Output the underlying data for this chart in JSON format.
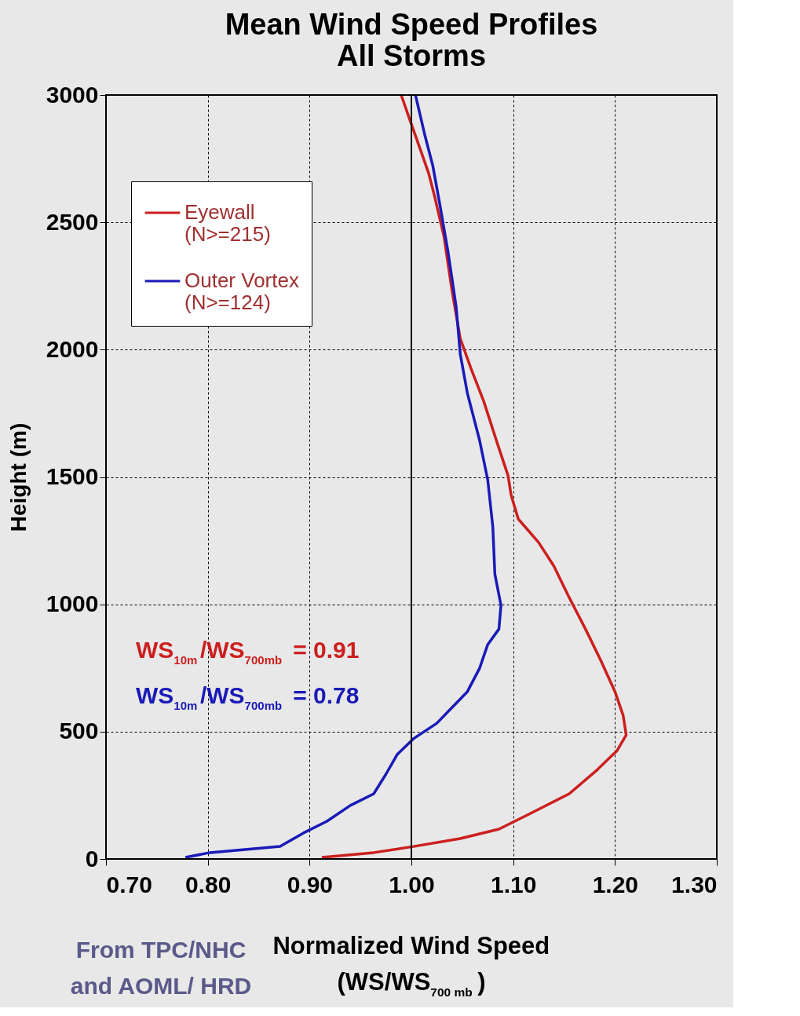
{
  "chart_data": {
    "type": "line",
    "title": "Mean Wind Speed Profiles\nAll Storms",
    "xlabel": "Normalized Wind Speed\n(WS/WS$_{700 mb}$)",
    "ylabel": "Height (m)",
    "xlim": [
      0.7,
      1.3
    ],
    "ylim": [
      0,
      3000
    ],
    "xticks": [
      {
        "value": 0.7,
        "label": "0.70"
      },
      {
        "value": 0.8,
        "label": "0.80"
      },
      {
        "value": 0.9,
        "label": "0.90"
      },
      {
        "value": 1.0,
        "label": "1.00"
      },
      {
        "value": 1.1,
        "label": "1.10"
      },
      {
        "value": 1.2,
        "label": "1.20"
      },
      {
        "value": 1.3,
        "label": "1.30"
      }
    ],
    "yticks": [
      0,
      500,
      1000,
      1500,
      2000,
      2500,
      3000
    ],
    "grid": true,
    "legend": "top left",
    "marker": "none",
    "line_style": "solid",
    "ref_lines": [
      {
        "axis": "x",
        "value": 1.0,
        "color": "#000000",
        "line_style": "solid"
      }
    ],
    "series": [
      {
        "name": "Eyewall\n(N>=215)",
        "color": "#cc1f1f",
        "x": [
          0.912,
          0.963,
          1.002,
          1.048,
          1.086,
          1.117,
          1.155,
          1.182,
          1.198,
          1.202,
          1.211,
          1.208,
          1.2,
          1.186,
          1.171,
          1.155,
          1.14,
          1.125,
          1.105,
          1.098,
          1.095,
          1.086,
          1.071,
          1.059,
          1.048,
          1.04,
          1.032,
          1.023,
          1.017,
          1.009,
          0.998,
          0.99
        ],
        "values": [
          6,
          25,
          49,
          80,
          117,
          179,
          256,
          348,
          410,
          425,
          487,
          564,
          657,
          780,
          903,
          1027,
          1150,
          1243,
          1335,
          1428,
          1505,
          1613,
          1798,
          1921,
          2044,
          2229,
          2445,
          2599,
          2692,
          2784,
          2908,
          3000
        ]
      },
      {
        "name": "Outer Vortex\n(N>=124)",
        "color": "#1a1ab8",
        "x": [
          0.778,
          0.802,
          0.871,
          0.894,
          0.917,
          0.94,
          0.963,
          0.975,
          0.986,
          1.002,
          1.025,
          1.04,
          1.055,
          1.067,
          1.075,
          1.086,
          1.088,
          1.082,
          1.08,
          1.075,
          1.067,
          1.055,
          1.048,
          1.044,
          1.036,
          1.028,
          1.021,
          1.013,
          1.004
        ],
        "values": [
          6,
          25,
          49,
          102,
          148,
          210,
          256,
          333,
          410,
          472,
          533,
          595,
          657,
          749,
          842,
          903,
          996,
          1119,
          1304,
          1489,
          1644,
          1829,
          1983,
          2168,
          2384,
          2569,
          2723,
          2846,
          3000
        ]
      }
    ],
    "annotations": [
      "WS$_{10m}$/WS$_{700mb}$ = 0.91",
      "WS$_{10m}$/WS$_{700mb}$ = 0.78",
      "From TPC/NHC\nand AOML/ HRD"
    ]
  }
}
